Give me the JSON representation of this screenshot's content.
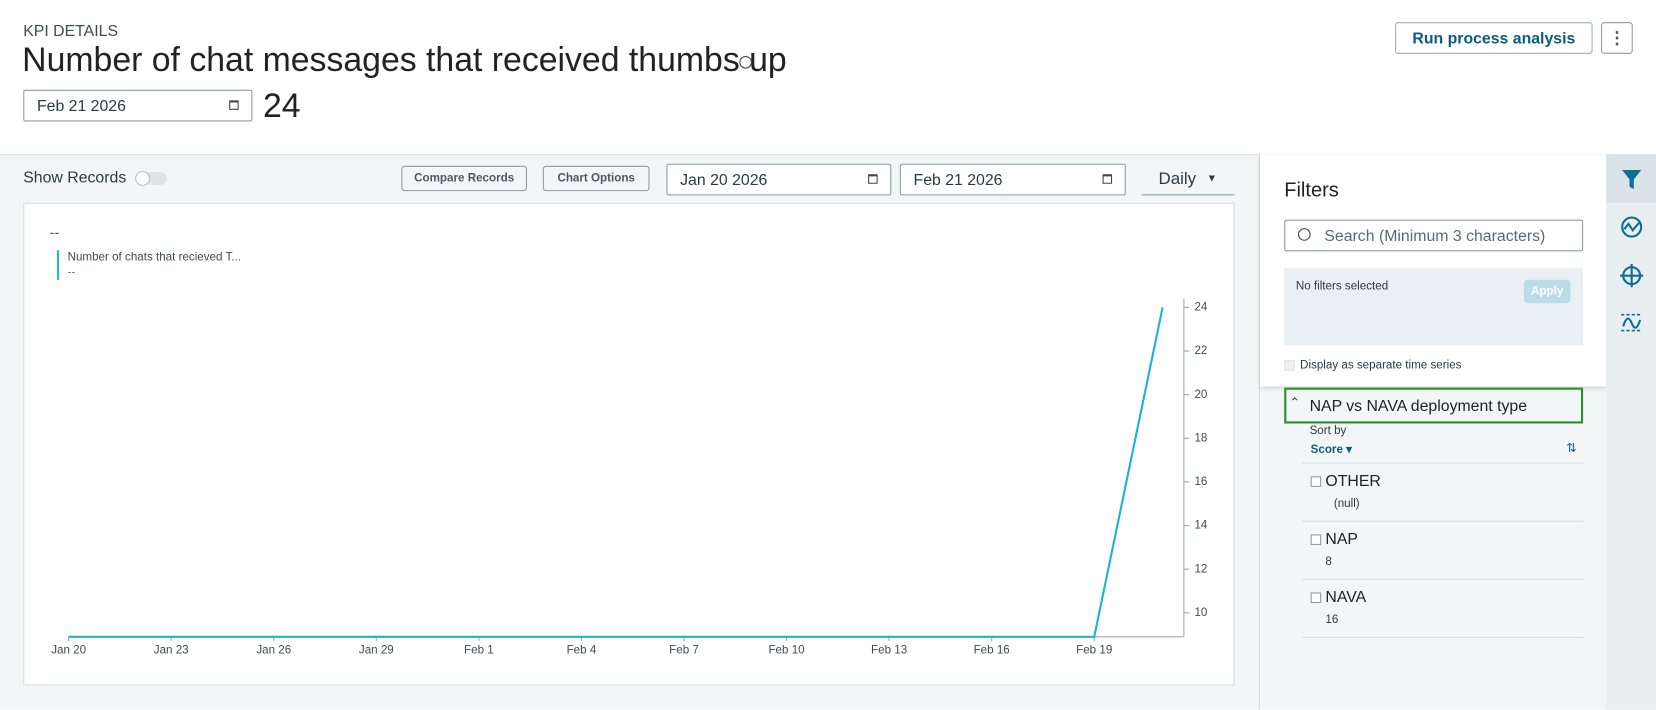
{
  "header": {
    "eyebrow": "KPI DETAILS",
    "title": "Number of chat messages that received thumbs up",
    "date": "Feb 21 2026",
    "kpi_value": 24,
    "run_button": "Run process analysis"
  },
  "toolbar": {
    "show_records": "Show Records",
    "compare_records": "Compare Records",
    "chart_options": "Chart Options",
    "start_date": "Jan 20 2026",
    "end_date": "Feb 21 2026",
    "interval": "Daily"
  },
  "chart_data": {
    "type": "line",
    "summary_value": "--",
    "legend_value": "--",
    "categories": [
      "Jan 20",
      null,
      null,
      "Jan 23",
      null,
      null,
      "Jan 26",
      null,
      null,
      "Jan 29",
      null,
      null,
      "Feb 1",
      null,
      null,
      "Feb 4",
      null,
      null,
      "Feb 7",
      null,
      null,
      "Feb 10",
      null,
      null,
      "Feb 13",
      null,
      null,
      "Feb 16",
      null,
      null,
      "Feb 19",
      null,
      null
    ],
    "series": [
      {
        "name": "Number of chats that recieved T...",
        "color": "#1fb3d1",
        "values": [
          8.9,
          8.9,
          8.9,
          8.9,
          8.9,
          8.9,
          8.9,
          8.9,
          8.9,
          8.9,
          8.9,
          8.9,
          8.9,
          8.9,
          8.9,
          8.9,
          8.9,
          8.9,
          8.9,
          8.9,
          8.9,
          8.9,
          8.9,
          8.9,
          8.9,
          8.9,
          8.9,
          8.9,
          8.9,
          8.9,
          8.9,
          16.45,
          24
        ]
      }
    ],
    "ylim": [
      8.9,
      24.2
    ],
    "yticks": [
      10,
      12,
      14,
      16,
      18,
      20,
      22,
      24
    ],
    "y_axis_side": "right",
    "grid": false
  },
  "filters": {
    "title": "Filters",
    "search_placeholder": "Search (Minimum 3 characters)",
    "status": "No filters selected",
    "apply": "Apply",
    "separate_series": "Display as separate time series",
    "group": {
      "title": "NAP vs NAVA deployment type",
      "sort_by": "Sort by",
      "sort_field": "Score",
      "items": [
        {
          "label": "OTHER",
          "count": "(null)"
        },
        {
          "label": "NAP",
          "count": 8
        },
        {
          "label": "NAVA",
          "count": 16
        }
      ]
    }
  }
}
